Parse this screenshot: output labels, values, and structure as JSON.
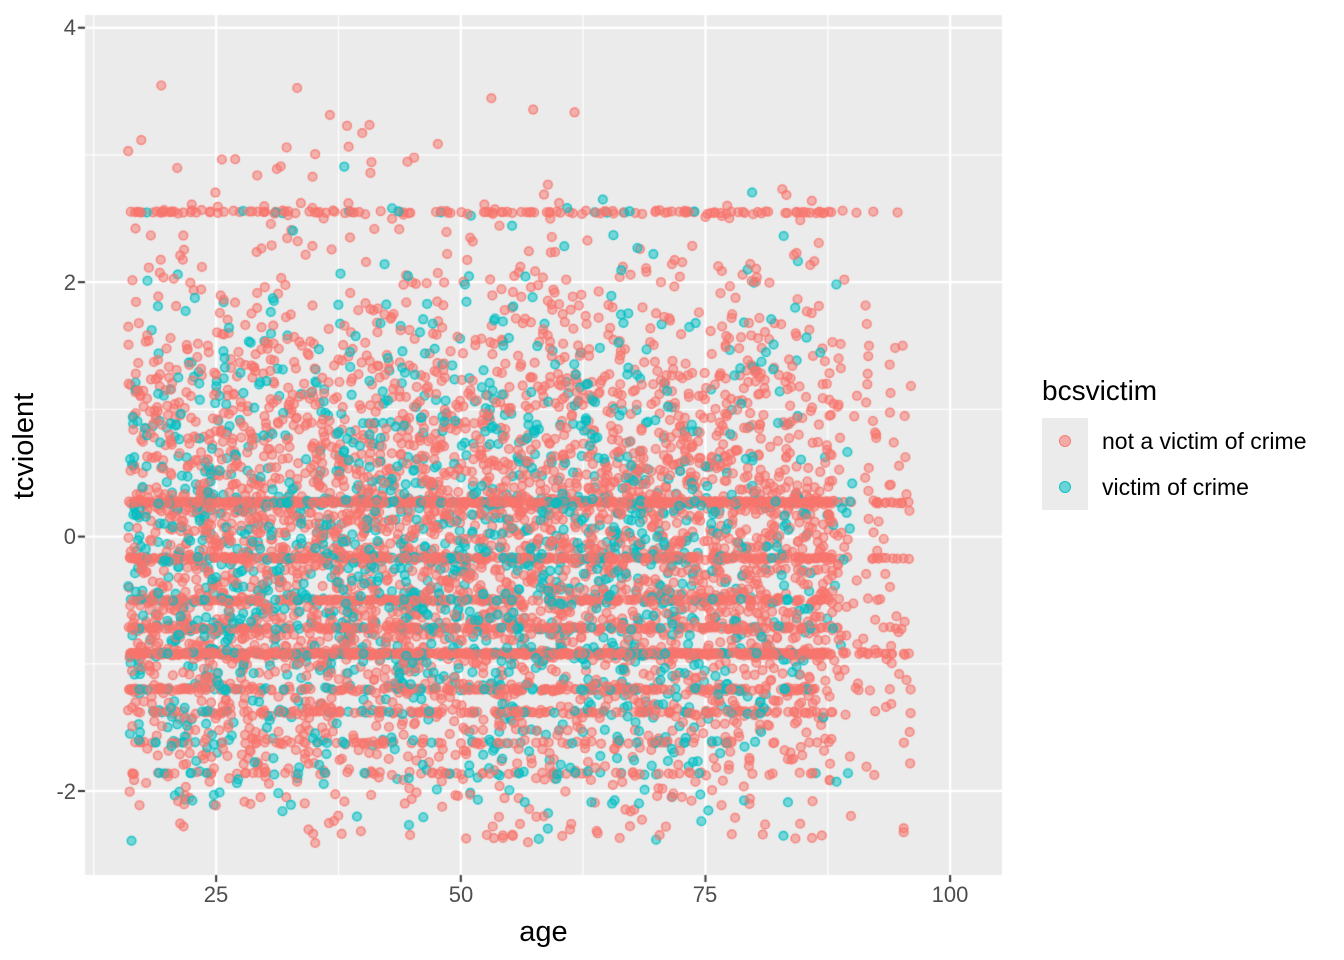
{
  "figure": {
    "background": "#FFFFFF",
    "panel_bg": "#EBEBEB",
    "grid_color": "#FFFFFF",
    "tick_mark_color": "#333333",
    "tick_label_color": "#4D4D4D",
    "title_color": "#000000"
  },
  "axes": {
    "x": {
      "label": "age",
      "tick_labels": [
        "25",
        "50",
        "75",
        "100"
      ]
    },
    "y": {
      "label": "tcviolent",
      "tick_labels": [
        "4",
        "2",
        "0",
        "-2"
      ]
    }
  },
  "legend": {
    "title": "bcsvictim",
    "entries": [
      {
        "label": "not a victim of crime",
        "color": "#F8766D"
      },
      {
        "label": "victim of crime",
        "color": "#00BFC4"
      }
    ]
  },
  "chart_data": {
    "type": "scatter",
    "title": "",
    "xlabel": "age",
    "ylabel": "tcviolent",
    "xlim": [
      11.6,
      105.3
    ],
    "ylim": [
      -2.66,
      4.1
    ],
    "x_ticks": [
      25,
      50,
      75,
      100
    ],
    "x_minor_ticks": [
      12.5,
      37.5,
      62.5,
      87.5
    ],
    "y_ticks": [
      -2,
      0,
      2,
      4
    ],
    "y_minor_ticks": [
      -1,
      1,
      3
    ],
    "grid": "on",
    "legend_title": "bcsvictim",
    "legend_position": "right",
    "point_style": {
      "radius": 5,
      "fill_alpha": 0.5,
      "stroke_alpha": 0.85,
      "stroke_width": 1.4
    },
    "seed": 1337,
    "series": [
      {
        "name": "not a victim of crime",
        "color": "#F8766D",
        "n": 6200,
        "age_range": [
          16,
          96
        ],
        "age_segments": [
          {
            "min": 16,
            "max": 78,
            "w": 0.84
          },
          {
            "min": 78,
            "max": 88,
            "w": 0.135
          },
          {
            "min": 88,
            "max": 96,
            "w": 0.025
          }
        ],
        "y_continuous": {
          "mean": -0.08,
          "sd": 1.12,
          "min": -2.42,
          "max": 3.82
        },
        "stripe_fraction": 0.4,
        "stripes": [
          {
            "y": 2.55,
            "w": 0.05
          },
          {
            "y": 0.27,
            "w": 0.2
          },
          {
            "y": -0.17,
            "w": 0.13
          },
          {
            "y": -0.5,
            "w": 0.09
          },
          {
            "y": -0.72,
            "w": 0.09
          },
          {
            "y": -0.92,
            "w": 0.25
          },
          {
            "y": -1.2,
            "w": 0.07
          },
          {
            "y": -1.38,
            "w": 0.06
          },
          {
            "y": -1.62,
            "w": 0.035
          },
          {
            "y": -1.86,
            "w": 0.025
          }
        ]
      },
      {
        "name": "victim of crime",
        "color": "#00BFC4",
        "n": 1950,
        "age_range": [
          16,
          90
        ],
        "age_segments": [
          {
            "min": 16,
            "max": 74,
            "w": 0.88
          },
          {
            "min": 74,
            "max": 86,
            "w": 0.11
          },
          {
            "min": 86,
            "max": 90,
            "w": 0.01
          }
        ],
        "y_continuous": {
          "mean": -0.18,
          "sd": 1.02,
          "min": -2.4,
          "max": 3.55
        },
        "stripe_fraction": 0.22,
        "stripes": [
          {
            "y": 2.55,
            "w": 0.03
          },
          {
            "y": 0.27,
            "w": 0.16
          },
          {
            "y": -0.17,
            "w": 0.13
          },
          {
            "y": -0.5,
            "w": 0.11
          },
          {
            "y": -0.72,
            "w": 0.1
          },
          {
            "y": -0.92,
            "w": 0.22
          },
          {
            "y": -1.2,
            "w": 0.09
          },
          {
            "y": -1.38,
            "w": 0.07
          },
          {
            "y": -1.62,
            "w": 0.05
          },
          {
            "y": -1.86,
            "w": 0.04
          }
        ]
      }
    ]
  }
}
